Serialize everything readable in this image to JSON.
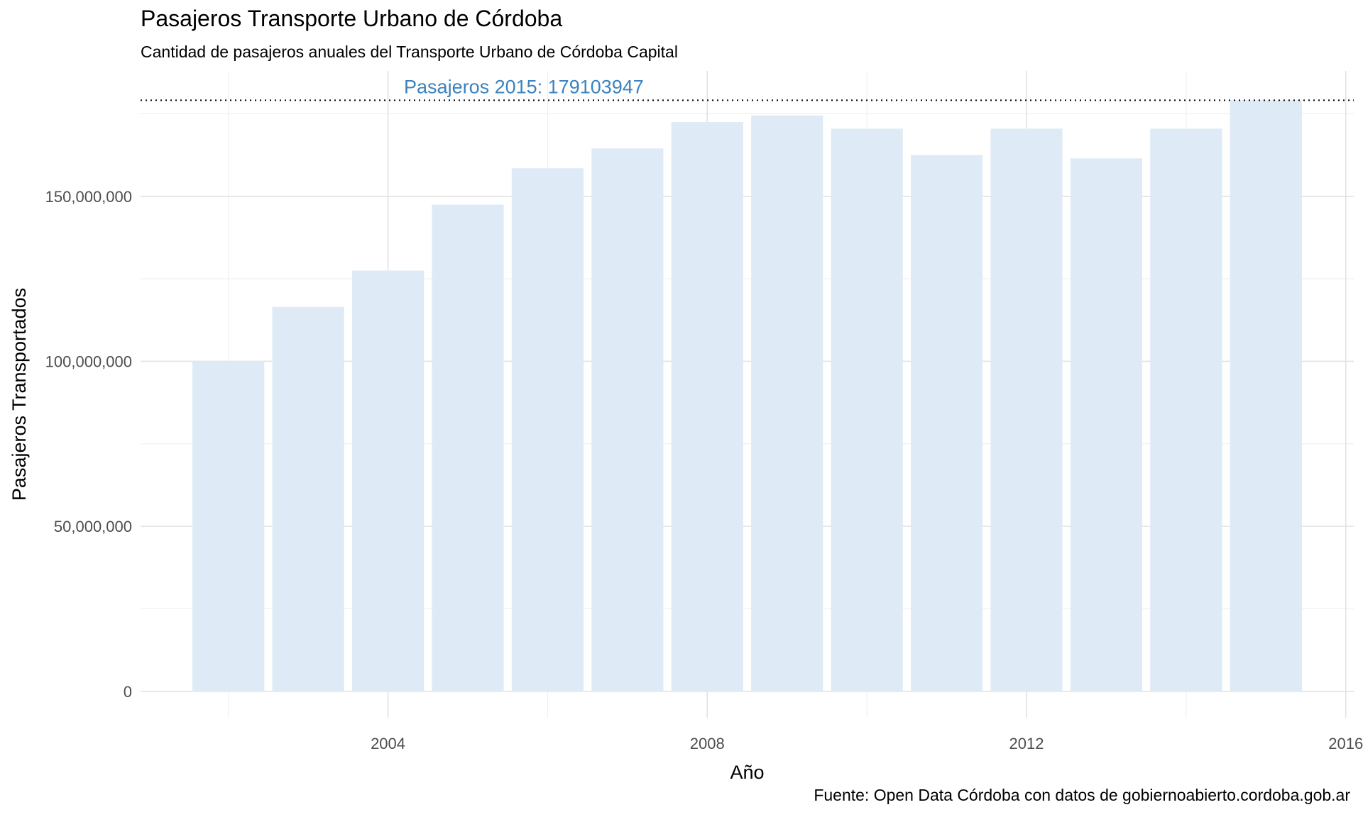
{
  "chart_data": {
    "type": "bar",
    "title": "Pasajeros Transporte Urbano de Córdoba",
    "subtitle": "Cantidad de pasajeros anuales del Transporte Urbano de Córdoba Capital",
    "caption": "Fuente: Open Data Córdoba con datos de gobiernoabierto.cordoba.gob.ar",
    "xlabel": "Año",
    "ylabel": "Pasajeros Transportados",
    "x": [
      2002,
      2003,
      2004,
      2005,
      2006,
      2007,
      2008,
      2009,
      2010,
      2011,
      2012,
      2013,
      2014,
      2015
    ],
    "values": [
      100000000,
      116500000,
      127500000,
      147500000,
      158500000,
      164500000,
      172500000,
      174500000,
      170500000,
      162500000,
      170500000,
      161500000,
      170500000,
      179103947
    ],
    "xlim": [
      2000.9,
      2016.1
    ],
    "ylim": [
      -8000000,
      188000000
    ],
    "x_ticks": [
      2004,
      2008,
      2012,
      2016
    ],
    "x_tick_labels": [
      "2004",
      "2008",
      "2012",
      "2016"
    ],
    "y_ticks": [
      0,
      50000000,
      100000000,
      150000000
    ],
    "y_tick_labels": [
      "0",
      "50,000,000",
      "100,000,000",
      "150,000,000"
    ],
    "reference_line": {
      "y": 179103947,
      "style": "dotted",
      "color": "#000000"
    },
    "annotation": {
      "text": "Pasajeros 2015: 179103947",
      "x": 2004.2,
      "y": 179103947,
      "color": "#3C82BE"
    },
    "bar_color": "#DEEAF5",
    "grid": true,
    "legend": "none"
  }
}
